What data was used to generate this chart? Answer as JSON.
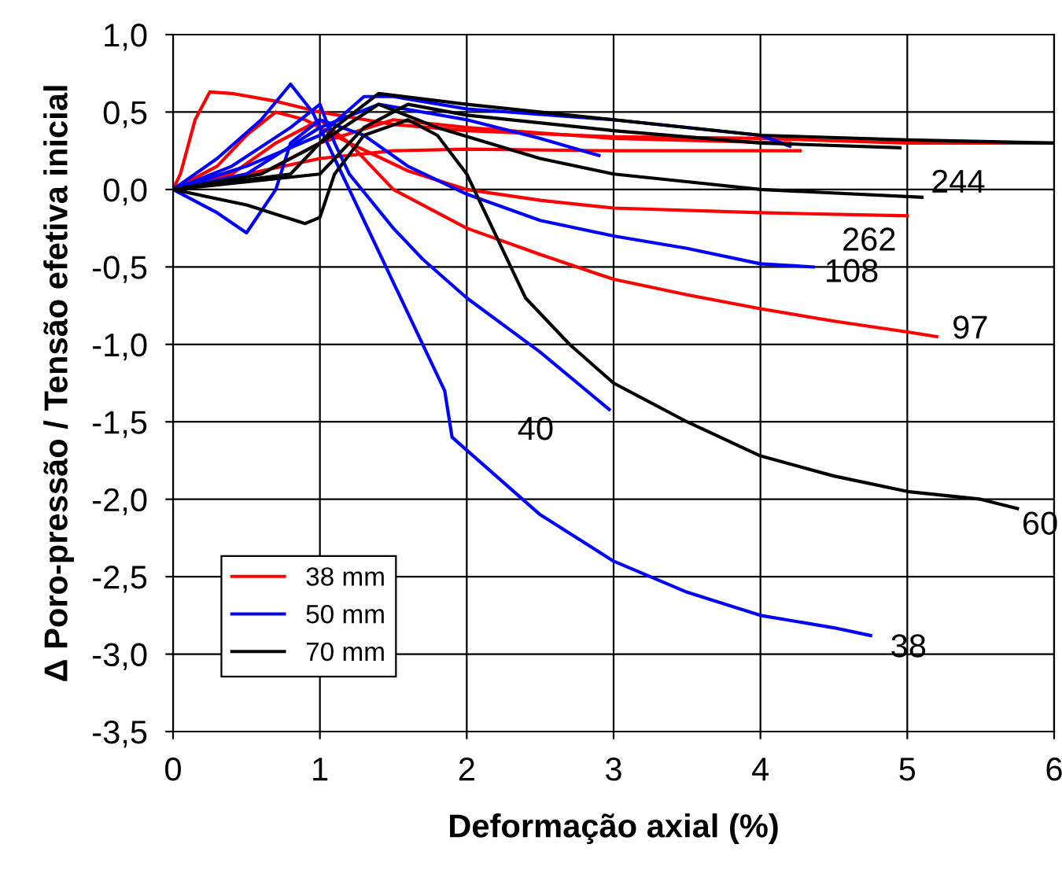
{
  "chart_data": {
    "type": "line",
    "xlabel": "Deformação axial (%)",
    "ylabel": "Δ Poro-pressão / Tensão efetiva inicial",
    "xlim": [
      0,
      6
    ],
    "ylim": [
      -3.5,
      1.0
    ],
    "xticks": [
      0,
      1,
      2,
      3,
      4,
      5,
      6
    ],
    "yticks": [
      {
        "value": -3.5,
        "label": "-3,5"
      },
      {
        "value": -3.0,
        "label": "-3,0"
      },
      {
        "value": -2.5,
        "label": "-2,5"
      },
      {
        "value": -2.0,
        "label": "-2,0"
      },
      {
        "value": -1.5,
        "label": "-1,5"
      },
      {
        "value": -1.0,
        "label": "-1,0"
      },
      {
        "value": -0.5,
        "label": "-0,5"
      },
      {
        "value": 0.0,
        "label": "0,0"
      },
      {
        "value": 0.5,
        "label": "0,5"
      },
      {
        "value": 1.0,
        "label": "1,0"
      }
    ],
    "grid": true,
    "legend": "bottom left",
    "marker": "none",
    "line_style": "solid",
    "series": [
      {
        "name": "38 mm",
        "color": "#ff0000",
        "x": [
          0,
          0.05,
          0.15,
          0.25,
          0.4,
          0.7,
          1.0,
          1.5,
          2,
          3,
          4,
          5,
          6
        ],
        "values": [
          0,
          0.1,
          0.45,
          0.63,
          0.62,
          0.57,
          0.5,
          0.42,
          0.38,
          0.34,
          0.33,
          0.3,
          0.3
        ]
      },
      {
        "color": "#ff0000",
        "x": [
          0,
          0.3,
          0.5,
          0.7,
          0.9,
          1.2,
          1.6,
          2,
          2.5,
          3,
          4,
          5
        ],
        "values": [
          0,
          0.15,
          0.35,
          0.5,
          0.45,
          0.3,
          0.12,
          0.0,
          -0.07,
          -0.12,
          -0.15,
          -0.17
        ]
      },
      {
        "color": "#ff0000",
        "x": [
          0,
          0.4,
          0.7,
          1.0,
          1.2,
          1.5,
          2,
          2.5,
          3,
          3.5,
          4,
          4.5,
          5,
          5.2
        ],
        "values": [
          0,
          0.1,
          0.3,
          0.45,
          0.3,
          0.0,
          -0.25,
          -0.42,
          -0.58,
          -0.68,
          -0.77,
          -0.85,
          -0.92,
          -0.95
        ]
      },
      {
        "color": "#ff0000",
        "x": [
          0,
          0.5,
          1.0,
          1.5,
          2,
          3,
          4.27
        ],
        "values": [
          0,
          0.1,
          0.2,
          0.25,
          0.26,
          0.25,
          0.25
        ]
      },
      {
        "color": "#ff0000",
        "x": [
          0,
          0.6,
          1.0,
          1.5,
          2,
          3,
          4.2
        ],
        "values": [
          0,
          0.1,
          0.3,
          0.45,
          0.4,
          0.33,
          0.3
        ]
      },
      {
        "name": "50 mm",
        "color": "#0000ff",
        "x": [
          0,
          0.3,
          0.6,
          0.8,
          0.95,
          1.1,
          1.3,
          1.5,
          1.7,
          1.85,
          1.9,
          2.2,
          2.5,
          3,
          3.5,
          4,
          4.5,
          4.75
        ],
        "values": [
          0,
          0.2,
          0.45,
          0.68,
          0.5,
          0.2,
          -0.2,
          -0.6,
          -1.0,
          -1.3,
          -1.6,
          -1.85,
          -2.1,
          -2.4,
          -2.6,
          -2.75,
          -2.83,
          -2.88
        ]
      },
      {
        "color": "#0000ff",
        "x": [
          0,
          0.4,
          0.8,
          1.0,
          1.1,
          1.2,
          1.5,
          1.7,
          2,
          2.5,
          2.97
        ],
        "values": [
          0,
          0.15,
          0.4,
          0.55,
          0.3,
          0.1,
          -0.25,
          -0.45,
          -0.7,
          -1.05,
          -1.42
        ]
      },
      {
        "color": "#0000ff",
        "x": [
          0,
          0.3,
          0.5,
          0.7,
          0.8,
          1.0,
          1.3,
          1.6,
          2,
          2.5,
          3,
          3.5,
          4,
          4.36
        ],
        "values": [
          0,
          -0.15,
          -0.28,
          0.0,
          0.3,
          0.45,
          0.35,
          0.15,
          -0.03,
          -0.2,
          -0.3,
          -0.38,
          -0.48,
          -0.5
        ]
      },
      {
        "color": "#0000ff",
        "x": [
          0,
          0.5,
          1.0,
          1.3,
          1.5,
          2,
          3,
          4,
          4.2
        ],
        "values": [
          0,
          0.15,
          0.35,
          0.6,
          0.6,
          0.52,
          0.45,
          0.35,
          0.28
        ]
      },
      {
        "color": "#0000ff",
        "x": [
          0,
          0.5,
          1.0,
          1.4,
          2,
          2.5,
          2.9
        ],
        "values": [
          0,
          0.1,
          0.4,
          0.55,
          0.45,
          0.33,
          0.22
        ]
      },
      {
        "name": "70 mm",
        "color": "#000000",
        "x": [
          0,
          0.5,
          0.9,
          1.0,
          1.1,
          1.3,
          1.6,
          1.8,
          2,
          2.2,
          2.4,
          2.7,
          3,
          3.5,
          4,
          4.5,
          5,
          5.5,
          5.75
        ],
        "values": [
          0,
          -0.1,
          -0.22,
          -0.18,
          0.1,
          0.35,
          0.45,
          0.35,
          0.1,
          -0.3,
          -0.7,
          -1.0,
          -1.25,
          -1.5,
          -1.72,
          -1.85,
          -1.95,
          -2.0,
          -2.06
        ]
      },
      {
        "color": "#000000",
        "x": [
          0,
          0.6,
          1.0,
          1.4,
          1.8,
          2.5,
          3,
          3.5,
          4,
          5.1
        ],
        "values": [
          0,
          0.1,
          0.3,
          0.55,
          0.4,
          0.2,
          0.1,
          0.05,
          0.0,
          -0.05
        ]
      },
      {
        "color": "#000000",
        "x": [
          0,
          0.8,
          1.1,
          1.4,
          2,
          3,
          4,
          5,
          6
        ],
        "values": [
          0,
          0.1,
          0.4,
          0.62,
          0.55,
          0.45,
          0.35,
          0.32,
          0.3
        ]
      },
      {
        "color": "#000000",
        "x": [
          0,
          1.0,
          1.3,
          1.6,
          2,
          3,
          4,
          4.95
        ],
        "values": [
          0,
          0.1,
          0.4,
          0.55,
          0.48,
          0.38,
          0.3,
          0.27
        ]
      }
    ],
    "annotations": [
      {
        "text": "244",
        "x": 5.1,
        "y": -0.05
      },
      {
        "text": "262",
        "x": 5,
        "y": -0.17
      },
      {
        "text": "108",
        "x": 4.36,
        "y": -0.5
      },
      {
        "text": "97",
        "x": 5.2,
        "y": -0.95
      },
      {
        "text": "40",
        "x": 2.97,
        "y": -1.42
      },
      {
        "text": "60",
        "x": 5.75,
        "y": -2.06
      },
      {
        "text": "38",
        "x": 4.75,
        "y": -2.88
      }
    ]
  }
}
